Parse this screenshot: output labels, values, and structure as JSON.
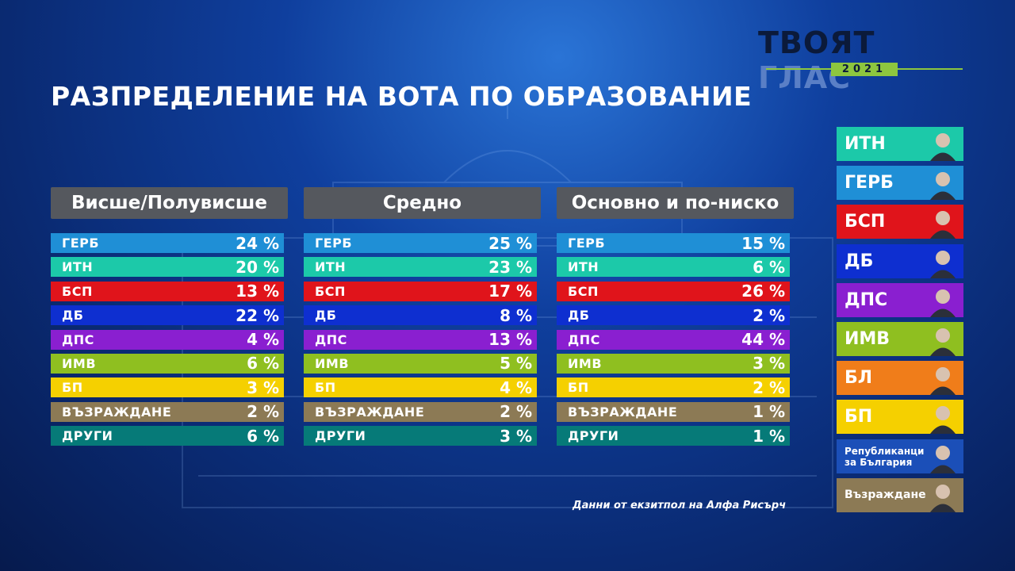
{
  "logo": {
    "word1": "ТВОЯТ",
    "word2": "ГЛАС",
    "year": "2021"
  },
  "title": "РАЗПРЕДЕЛЕНИЕ НА ВОТА ПО ОБРАЗОВАНИЕ",
  "source": "Данни от екзитпол на Алфа Рисърч",
  "colors": {
    "ГЕРБ": "#1f8fd6",
    "ИТН": "#1cc9a9",
    "БСП": "#e0141b",
    "ДБ": "#0e2fd0",
    "ДПС": "#8a1fd0",
    "ИМВ": "#8fbf20",
    "БП": "#f5d000",
    "ВЪЗРАЖДАНЕ": "#8c7a55",
    "ДРУГИ": "#067a78",
    "БЛ": "#f07d1a",
    "Републиканци за България": "#1b4fb8",
    "Възраждане": "#8c7a55"
  },
  "chart_data": {
    "type": "table",
    "title": "РАЗПРЕДЕЛЕНИЕ НА ВОТА ПО ОБРАЗОВАНИЕ",
    "unit": "%",
    "columns": [
      {
        "label": "Висше/Полувисше",
        "rows": [
          {
            "party": "ГЕРБ",
            "value": 24
          },
          {
            "party": "ИТН",
            "value": 20
          },
          {
            "party": "БСП",
            "value": 13
          },
          {
            "party": "ДБ",
            "value": 22
          },
          {
            "party": "ДПС",
            "value": 4
          },
          {
            "party": "ИМВ",
            "value": 6
          },
          {
            "party": "БП",
            "value": 3
          },
          {
            "party": "ВЪЗРАЖДАНЕ",
            "value": 2
          },
          {
            "party": "ДРУГИ",
            "value": 6
          }
        ]
      },
      {
        "label": "Средно",
        "rows": [
          {
            "party": "ГЕРБ",
            "value": 25
          },
          {
            "party": "ИТН",
            "value": 23
          },
          {
            "party": "БСП",
            "value": 17
          },
          {
            "party": "ДБ",
            "value": 8
          },
          {
            "party": "ДПС",
            "value": 13
          },
          {
            "party": "ИМВ",
            "value": 5
          },
          {
            "party": "БП",
            "value": 4
          },
          {
            "party": "ВЪЗРАЖДАНЕ",
            "value": 2
          },
          {
            "party": "ДРУГИ",
            "value": 3
          }
        ]
      },
      {
        "label": "Основно и по-ниско",
        "rows": [
          {
            "party": "ГЕРБ",
            "value": 15
          },
          {
            "party": "ИТН",
            "value": 6
          },
          {
            "party": "БСП",
            "value": 26
          },
          {
            "party": "ДБ",
            "value": 2
          },
          {
            "party": "ДПС",
            "value": 44
          },
          {
            "party": "ИМВ",
            "value": 3
          },
          {
            "party": "БП",
            "value": 2
          },
          {
            "party": "ВЪЗРАЖДАНЕ",
            "value": 1
          },
          {
            "party": "ДРУГИ",
            "value": 1
          }
        ]
      }
    ]
  },
  "legend": [
    {
      "label": "ИТН",
      "color": "#1cc9a9",
      "icon": "portrait-icon"
    },
    {
      "label": "ГЕРБ",
      "color": "#1f8fd6",
      "icon": "portrait-icon"
    },
    {
      "label": "БСП",
      "color": "#e0141b",
      "icon": "portrait-icon"
    },
    {
      "label": "ДБ",
      "color": "#0e2fd0",
      "icon": "portrait-icon"
    },
    {
      "label": "ДПС",
      "color": "#8a1fd0",
      "icon": "portrait-icon"
    },
    {
      "label": "ИМВ",
      "color": "#8fbf20",
      "icon": "portrait-icon"
    },
    {
      "label": "БЛ",
      "color": "#f07d1a",
      "icon": "portrait-icon"
    },
    {
      "label": "БП",
      "color": "#f5d000",
      "icon": "portrait-group-icon"
    },
    {
      "label": "Републиканци за България",
      "color": "#1b4fb8",
      "icon": "portrait-icon"
    },
    {
      "label": "Възраждане",
      "color": "#8c7a55",
      "icon": "portrait-icon"
    }
  ]
}
